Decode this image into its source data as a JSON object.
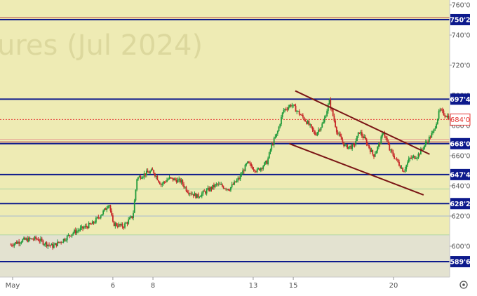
{
  "watermark": "ures (Jul 2024)",
  "chart_data": {
    "type": "candlestick",
    "y_ticks": [
      {
        "v": 760,
        "label": "760'0"
      },
      {
        "v": 740,
        "label": "740'0"
      },
      {
        "v": 720,
        "label": "720'0"
      },
      {
        "v": 700,
        "label": "700'0"
      },
      {
        "v": 680,
        "label": "680'0"
      },
      {
        "v": 660,
        "label": "660'0"
      },
      {
        "v": 640,
        "label": "640'0"
      },
      {
        "v": 620,
        "label": "620'0"
      },
      {
        "v": 600,
        "label": "600'0"
      }
    ],
    "x_ticks": [
      {
        "t": 1,
        "label": "May"
      },
      {
        "t": 6,
        "label": "6"
      },
      {
        "t": 8,
        "label": "8"
      },
      {
        "t": 13,
        "label": "13"
      },
      {
        "t": 15,
        "label": "15"
      },
      {
        "t": 20,
        "label": "20"
      }
    ],
    "levels": [
      {
        "v": 750.25,
        "label": "750'2",
        "color": "#0d1a8c"
      },
      {
        "v": 697.5,
        "label": "697'4",
        "color": "#0d1a8c"
      },
      {
        "v": 668.0,
        "label": "668'0",
        "color": "#0d1a8c"
      },
      {
        "v": 647.5,
        "label": "647'4",
        "color": "#0d1a8c"
      },
      {
        "v": 628.25,
        "label": "628'2",
        "color": "#0d1a8c"
      },
      {
        "v": 589.75,
        "label": "589'6",
        "color": "#0d1a8c"
      }
    ],
    "current_price": {
      "v": 684.0,
      "label": "684'0",
      "color": "#e53935"
    },
    "trend_lines": [
      {
        "p1": [
          15.1,
          703
        ],
        "p2": [
          21.8,
          661
        ]
      },
      {
        "p1": [
          14.8,
          668
        ],
        "p2": [
          21.5,
          634
        ]
      }
    ],
    "close_path": [
      [
        0.9,
        601
      ],
      [
        1.5,
        604
      ],
      [
        2.2,
        605
      ],
      [
        2.6,
        602
      ],
      [
        3.0,
        600
      ],
      [
        3.5,
        604
      ],
      [
        4.0,
        609
      ],
      [
        4.5,
        612
      ],
      [
        5.0,
        615
      ],
      [
        5.6,
        624
      ],
      [
        5.8,
        629
      ],
      [
        6.0,
        615
      ],
      [
        6.5,
        613
      ],
      [
        7.0,
        620
      ],
      [
        7.2,
        645
      ],
      [
        7.6,
        648
      ],
      [
        8.0,
        650
      ],
      [
        8.4,
        641
      ],
      [
        8.8,
        645
      ],
      [
        9.4,
        643
      ],
      [
        9.7,
        637
      ],
      [
        10.2,
        633
      ],
      [
        10.6,
        636
      ],
      [
        11.2,
        641
      ],
      [
        11.8,
        638
      ],
      [
        12.3,
        645
      ],
      [
        12.7,
        655
      ],
      [
        13.2,
        650
      ],
      [
        13.7,
        656
      ],
      [
        13.9,
        666
      ],
      [
        14.2,
        675
      ],
      [
        14.5,
        690
      ],
      [
        14.9,
        694
      ],
      [
        15.3,
        688
      ],
      [
        15.7,
        682
      ],
      [
        16.1,
        674
      ],
      [
        16.5,
        682
      ],
      [
        16.8,
        696
      ],
      [
        17.2,
        675
      ],
      [
        17.6,
        666
      ],
      [
        18.0,
        666
      ],
      [
        18.3,
        676
      ],
      [
        18.6,
        670
      ],
      [
        19.0,
        660
      ],
      [
        19.3,
        668
      ],
      [
        19.5,
        676
      ],
      [
        19.8,
        664
      ],
      [
        20.2,
        656
      ],
      [
        20.5,
        650
      ],
      [
        20.8,
        658
      ],
      [
        21.2,
        660
      ],
      [
        21.6,
        668
      ],
      [
        22.0,
        676
      ],
      [
        22.3,
        690
      ],
      [
        22.7,
        686
      ],
      [
        23.0,
        684
      ]
    ]
  }
}
